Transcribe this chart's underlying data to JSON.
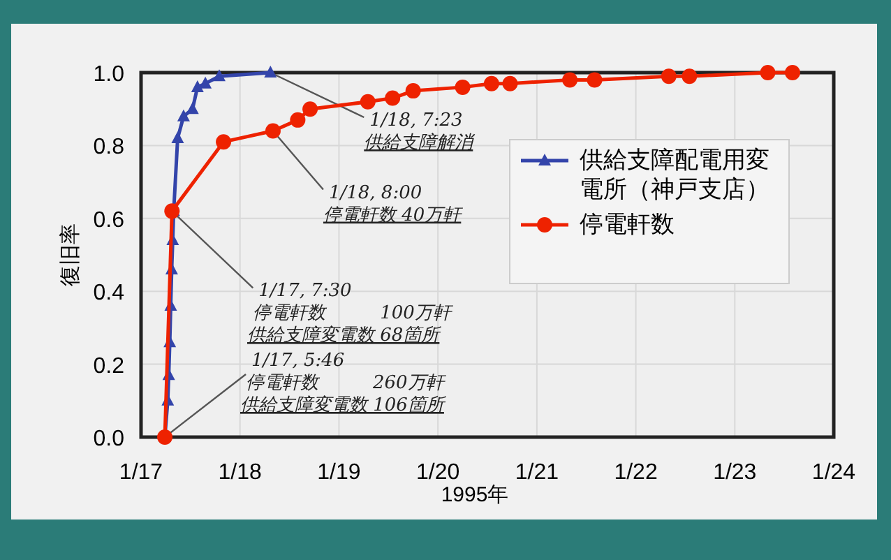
{
  "chart_data": {
    "type": "line",
    "xlabel": "1995年",
    "ylabel": "復旧率",
    "xlim": [
      "1995-01-17",
      "1995-01-24"
    ],
    "xticks": [
      {
        "value": "1995-01-17",
        "label": "1/17"
      },
      {
        "value": "1995-01-18",
        "label": "1/18"
      },
      {
        "value": "1995-01-19",
        "label": "1/19"
      },
      {
        "value": "1995-01-20",
        "label": "1/20"
      },
      {
        "value": "1995-01-21",
        "label": "1/21"
      },
      {
        "value": "1995-01-22",
        "label": "1/22"
      },
      {
        "value": "1995-01-23",
        "label": "1/23"
      },
      {
        "value": "1995-01-24",
        "label": "1/24"
      }
    ],
    "ylim": [
      0,
      1
    ],
    "yticks": [
      {
        "value": 0,
        "label": "0.0"
      },
      {
        "value": 0.2,
        "label": "0.2"
      },
      {
        "value": 0.4,
        "label": "0.4"
      },
      {
        "value": 0.6,
        "label": "0.6"
      },
      {
        "value": 0.8,
        "label": "0.8"
      },
      {
        "value": 1,
        "label": "1.0"
      }
    ],
    "grid": true,
    "legend": "right",
    "line_style": "solid",
    "series": [
      {
        "name": "供給支障配電用変電所（神戸支店）",
        "color": "#3344aa",
        "marker": "triangle",
        "x": [
          "1995-01-17T05:46",
          "1995-01-17T06:29",
          "1995-01-17T06:43",
          "1995-01-17T06:58",
          "1995-01-17T07:12",
          "1995-01-17T07:26",
          "1995-01-17T07:41",
          "1995-01-17T07:55",
          "1995-01-17T08:53",
          "1995-01-17T10:19",
          "1995-01-17T12:29",
          "1995-01-17T13:41",
          "1995-01-17T15:36",
          "1995-01-17T18:58",
          "1995-01-18T07:23"
        ],
        "values": [
          0,
          0.1,
          0.17,
          0.26,
          0.36,
          0.46,
          0.54,
          0.62,
          0.82,
          0.88,
          0.9,
          0.96,
          0.97,
          0.99,
          1.0
        ]
      },
      {
        "name": "停電軒数",
        "color": "#ee2200",
        "marker": "circle",
        "x": [
          "1995-01-17T05:46",
          "1995-01-17T07:30",
          "1995-01-17T20:00",
          "1995-01-18T08:00",
          "1995-01-18T14:00",
          "1995-01-18T17:00",
          "1995-01-19T07:00",
          "1995-01-19T13:00",
          "1995-01-19T18:00",
          "1995-01-20T06:00",
          "1995-01-20T13:00",
          "1995-01-20T17:30",
          "1995-01-21T08:00",
          "1995-01-21T14:00",
          "1995-01-22T08:00",
          "1995-01-22T13:00",
          "1995-01-23T08:00",
          "1995-01-23T14:00"
        ],
        "values": [
          0,
          0.62,
          0.81,
          0.84,
          0.87,
          0.9,
          0.92,
          0.93,
          0.95,
          0.96,
          0.97,
          0.97,
          0.98,
          0.98,
          0.99,
          0.99,
          1.0,
          1.0
        ]
      }
    ],
    "annotations": [
      {
        "text": "1/18, 7:23\n供給支障解消",
        "x": "1995-01-18T07:23",
        "y": 1.0
      },
      {
        "text": "1/18, 8:00\n停電軒数  40万軒",
        "x": "1995-01-18T08:00",
        "y": 0.84
      },
      {
        "text": "1/17, 7:30\n停電軒数　　　100万軒",
        "x": "1995-01-17T07:30",
        "y": 0.62
      },
      "供給支障変電数 68箇所",
      {
        "text": "1/17, 5:46\n停電軒数　　　260万軒",
        "x": "1995-01-17T05:46",
        "y": 0
      },
      "供給支障変電数 106箇所"
    ]
  }
}
